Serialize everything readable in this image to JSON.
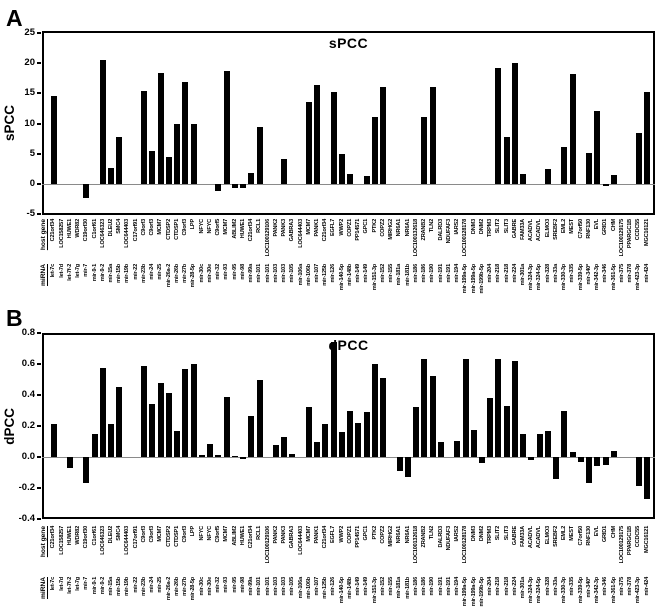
{
  "figure": {
    "panel_a_label": "A",
    "panel_b_label": "B"
  },
  "x_labels": {
    "mirna_header": "miRNA",
    "host_header": "host gene",
    "pairs": [
      {
        "mirna": "let-7c",
        "host": "C21orf34"
      },
      {
        "mirna": "let-7d",
        "host": "LOC158257"
      },
      {
        "mirna": "let-7f-2",
        "host": "HUWE1"
      },
      {
        "mirna": "let-7g",
        "host": "WDR82"
      },
      {
        "mirna": "mir-7",
        "host": "C19orf30"
      },
      {
        "mirna": "mir-9-1",
        "host": "C1orf61"
      },
      {
        "mirna": "mir-9-2",
        "host": "LOC646323"
      },
      {
        "mirna": "mir-15a",
        "host": "DLEU2"
      },
      {
        "mirna": "mir-15b",
        "host": "SMC4"
      },
      {
        "mirna": "mir-19b",
        "host": "LOC644403"
      },
      {
        "mirna": "mir-22",
        "host": "C17orf91"
      },
      {
        "mirna": "mir-23b",
        "host": "C9orf3"
      },
      {
        "mirna": "mir-24",
        "host": "C9orf3"
      },
      {
        "mirna": "mir-25",
        "host": "MCM7"
      },
      {
        "mirna": "mir-26a-2",
        "host": "CTDSP2"
      },
      {
        "mirna": "mir-26b",
        "host": "CTDSP1"
      },
      {
        "mirna": "mir-27b",
        "host": "C9orf3"
      },
      {
        "mirna": "mir-28-5p",
        "host": "LPP"
      },
      {
        "mirna": "mir-30c",
        "host": "NFYC"
      },
      {
        "mirna": "mir-30e",
        "host": "NFYC"
      },
      {
        "mirna": "mir-32",
        "host": "C9orf5"
      },
      {
        "mirna": "mir-93",
        "host": "MCM7"
      },
      {
        "mirna": "mir-95",
        "host": "ABLIM2"
      },
      {
        "mirna": "mir-98",
        "host": "HUWE1"
      },
      {
        "mirna": "mir-99a",
        "host": "C21orf34"
      },
      {
        "mirna": "mir-101",
        "host": "RCL1"
      },
      {
        "mirna": "mir-101",
        "host": "LOC100129106"
      },
      {
        "mirna": "mir-103",
        "host": "PANK2"
      },
      {
        "mirna": "mir-103",
        "host": "PANK3"
      },
      {
        "mirna": "mir-105",
        "host": "GABRA3"
      },
      {
        "mirna": "mir-106a",
        "host": "LOC644403"
      },
      {
        "mirna": "mir-106b",
        "host": "MCM7"
      },
      {
        "mirna": "mir-107",
        "host": "PANK1"
      },
      {
        "mirna": "mir-125b",
        "host": "C21orf34"
      },
      {
        "mirna": "mir-126",
        "host": "EGFL7"
      },
      {
        "mirna": "mir-140-5p",
        "host": "WWP2"
      },
      {
        "mirna": "mir-148b",
        "host": "COPZ1"
      },
      {
        "mirna": "mir-149",
        "host": "PP14571"
      },
      {
        "mirna": "mir-149",
        "host": "GPC1"
      },
      {
        "mirna": "mir-151-3p",
        "host": "PTK2"
      },
      {
        "mirna": "mir-152",
        "host": "COPZ2"
      },
      {
        "mirna": "mir-155",
        "host": "MIRHG2"
      },
      {
        "mirna": "mir-181a",
        "host": "NR6A1"
      },
      {
        "mirna": "mir-181b",
        "host": "NR6A1"
      },
      {
        "mirna": "mir-186",
        "host": "LOC100132618"
      },
      {
        "mirna": "mir-186",
        "host": "ZRANB2"
      },
      {
        "mirna": "mir-190",
        "host": "TLN2"
      },
      {
        "mirna": "mir-191",
        "host": "DALRD3"
      },
      {
        "mirna": "mir-191",
        "host": "NDUFAF3"
      },
      {
        "mirna": "mir-194",
        "host": "IARS2"
      },
      {
        "mirna": "mir-199a-5p",
        "host": "LOC100128178"
      },
      {
        "mirna": "mir-199a-5p",
        "host": "DNM3"
      },
      {
        "mirna": "mir-199b-5p",
        "host": "DNM2"
      },
      {
        "mirna": "mir-204",
        "host": "TRPM3"
      },
      {
        "mirna": "mir-218",
        "host": "SLIT2"
      },
      {
        "mirna": "mir-218",
        "host": "SLIT3"
      },
      {
        "mirna": "mir-224",
        "host": "GABRE"
      },
      {
        "mirna": "mir-301a",
        "host": "FAM33A"
      },
      {
        "mirna": "mir-324-3p",
        "host": "ACADVL"
      },
      {
        "mirna": "mir-324-5p",
        "host": "ACADVL"
      },
      {
        "mirna": "mir-328",
        "host": "ELMO3"
      },
      {
        "mirna": "mir-33a",
        "host": "SREBF2"
      },
      {
        "mirna": "mir-330-3p",
        "host": "EML2"
      },
      {
        "mirna": "mir-335",
        "host": "MEST"
      },
      {
        "mirna": "mir-339-5p",
        "host": "C7orf50"
      },
      {
        "mirna": "mir-340*",
        "host": "RNF130"
      },
      {
        "mirna": "mir-342-3p",
        "host": "EVL"
      },
      {
        "mirna": "mir-346",
        "host": "GRID1"
      },
      {
        "mirna": "mir-361-5p",
        "host": "CHM"
      },
      {
        "mirna": "mir-375",
        "host": "LOC100129175"
      },
      {
        "mirna": "mir-378",
        "host": "PPARGC1B"
      },
      {
        "mirna": "mir-423-3p",
        "host": "CCDC55"
      },
      {
        "mirna": "mir-424",
        "host": "MGC16121"
      }
    ]
  },
  "chart_data": [
    {
      "type": "bar",
      "panel": "A",
      "title": "sPCC",
      "ylabel": "sPCC",
      "xlabel_rows": [
        "host gene",
        "miRNA"
      ],
      "ylim": [
        -5,
        25
      ],
      "yticks": [
        25,
        20,
        15,
        10,
        5,
        0,
        -5
      ],
      "ytick_labels": [
        "25",
        "20",
        "15",
        "10",
        "5",
        "0",
        "-5"
      ],
      "grid": false,
      "bar_color": "#000000",
      "zero_line_color": "#8a8a8a",
      "values": [
        14.6,
        0,
        0,
        0,
        -2.3,
        0,
        20.5,
        2.7,
        7.7,
        0,
        0,
        15.3,
        5.5,
        18.3,
        4.4,
        10.0,
        16.8,
        9.9,
        0,
        0,
        -1.2,
        18.7,
        -0.6,
        -0.7,
        1.9,
        9.5,
        0,
        0,
        4.2,
        0,
        0,
        13.6,
        16.3,
        0,
        15.2,
        4.9,
        1.6,
        0,
        1.4,
        11.1,
        16.1,
        0,
        0,
        0,
        0,
        11.0,
        16.0,
        0,
        0,
        0,
        0,
        0,
        0,
        0,
        19.2,
        7.8,
        20.0,
        1.6,
        0,
        0,
        2.4,
        0,
        6.1,
        18.2,
        0,
        5.2,
        12.1,
        -0.3,
        1.5,
        0,
        0,
        8.4,
        15.2
      ]
    },
    {
      "type": "bar",
      "panel": "B",
      "title": "dPCC",
      "ylabel": "dPCC",
      "xlabel_rows": [
        "host gene",
        "miRNA"
      ],
      "ylim": [
        -0.4,
        0.8
      ],
      "yticks": [
        0.8,
        0.6,
        0.4,
        0.2,
        0,
        -0.2,
        -0.4
      ],
      "ytick_labels": [
        "0.8",
        "0.6",
        "0.4",
        "0.2",
        "0.0",
        "-0.2",
        "-0.4"
      ],
      "grid": false,
      "bar_color": "#000000",
      "zero_line_color": "#8a8a8a",
      "values": [
        0.21,
        0,
        -0.07,
        0,
        -0.17,
        0.15,
        0.575,
        0.215,
        0.45,
        0,
        0,
        0.59,
        0.34,
        0.475,
        0.415,
        0.17,
        0.565,
        0.6,
        0.01,
        0.085,
        0.015,
        0.39,
        0.005,
        -0.01,
        0.265,
        0.495,
        0,
        0.08,
        0.13,
        0.02,
        0,
        0.325,
        0.1,
        0.21,
        0.74,
        0.16,
        0.3,
        0.22,
        0.29,
        0.6,
        0.51,
        0,
        -0.09,
        -0.13,
        0.325,
        0.63,
        0.52,
        0.095,
        0,
        0.105,
        0.635,
        0.175,
        -0.04,
        0.38,
        0.63,
        0.33,
        0.62,
        0.15,
        -0.02,
        0.15,
        0.165,
        -0.14,
        0.3,
        0.03,
        -0.03,
        -0.17,
        -0.055,
        -0.05,
        0.04,
        0,
        0,
        -0.19,
        -0.27
      ]
    }
  ]
}
